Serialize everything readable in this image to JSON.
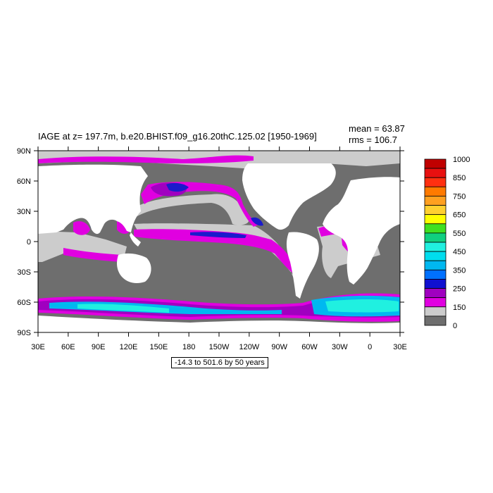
{
  "title": "IAGE at z= 197.7m, b.e20.BHIST.f09_g16.20thC.125.02 [1950-1969]",
  "stats": {
    "mean": "mean = 63.87",
    "rms": "rms = 106.7"
  },
  "range_note": "-14.3 to 501.6 by 50 years",
  "x_ticks": [
    "30E",
    "60E",
    "90E",
    "120E",
    "150E",
    "180",
    "150W",
    "120W",
    "90W",
    "60W",
    "30W",
    "0",
    "30E"
  ],
  "y_ticks": [
    "90N",
    "60N",
    "30N",
    "0",
    "30S",
    "60S",
    "90S"
  ],
  "colorbar": {
    "labels": [
      "1000",
      "850",
      "750",
      "650",
      "550",
      "450",
      "350",
      "250",
      "150",
      "0"
    ],
    "colors": [
      "#c00000",
      "#e81010",
      "#ff3010",
      "#ff7a00",
      "#ffa020",
      "#ffd030",
      "#ffff00",
      "#40e020",
      "#10d080",
      "#20f0e0",
      "#00ddee",
      "#00b8f0",
      "#0070ff",
      "#1010d0",
      "#a000c0",
      "#e000e0",
      "#cccccc",
      "#6e6e6e"
    ]
  },
  "colors": {
    "land": "#ffffff",
    "old_water": "#6e6e6e",
    "light_gray": "#cccccc",
    "magenta": "#e000e0",
    "purple": "#a000c0",
    "blue": "#1a1acc",
    "cyan": "#20f0e0",
    "sky": "#00b8f0"
  }
}
